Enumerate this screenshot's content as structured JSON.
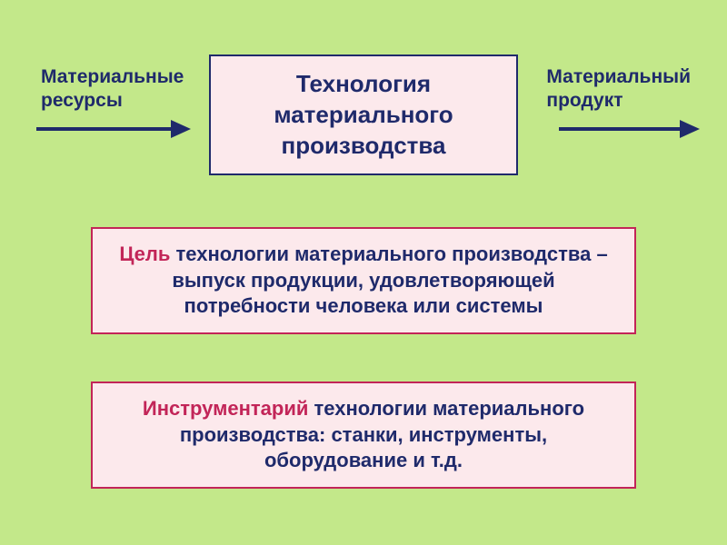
{
  "slide": {
    "background_color": "#c3e88a",
    "top": {
      "left_label": "Материальные\nресурсы",
      "right_label": "Материальный\nпродукт",
      "label_fontsize": 21,
      "label_color": "#1f2a6b",
      "arrow": {
        "color": "#1f2a6b",
        "line_width": 4,
        "left_length": 170,
        "right_length": 155,
        "head_length": 22,
        "head_width": 20
      },
      "center_box": {
        "text": "Технология материального производства",
        "fontsize": 26,
        "text_color": "#1f2a6b",
        "background_color": "#fce9ec",
        "border_color": "#1f2a6b",
        "border_width": 2
      }
    },
    "goal_box": {
      "accent_word": "Цель",
      "rest_text": " технологии материального производства – выпуск продукции, удовлетворяющей потребности человека или системы",
      "fontsize": 22,
      "text_color": "#1f2a6b",
      "accent_color": "#c22558",
      "background_color": "#fce9ec",
      "border_color": "#c22558",
      "border_width": 2
    },
    "tools_box": {
      "accent_word": "Инструментарий",
      "rest_text": " технологии материального производства: станки, инструменты, оборудование и т.д.",
      "fontsize": 22,
      "text_color": "#1f2a6b",
      "accent_color": "#c22558",
      "background_color": "#fce9ec",
      "border_color": "#c22558",
      "border_width": 2
    }
  }
}
